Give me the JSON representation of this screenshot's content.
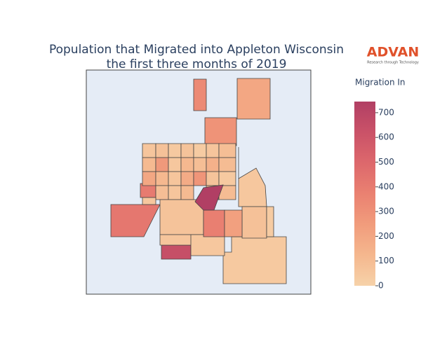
{
  "chart_data": {
    "type": "choropleth",
    "title": "Population that Migrated into Appleton Wisconsin",
    "subtitle": "the first three months of 2019",
    "logo": {
      "name": "ADVAN",
      "tagline": "Research through Technology"
    },
    "colorbar_title": "Migration In",
    "colorscale": [
      "#f6d2a9",
      "#f5b78e",
      "#f19c7c",
      "#ea8171",
      "#dd686c",
      "#ca5268",
      "#b13f64"
    ],
    "zlim": [
      0,
      745
    ],
    "zticks": [
      0,
      100,
      200,
      300,
      400,
      500,
      600,
      700
    ],
    "values": [
      330,
      200,
      290,
      40,
      640,
      420,
      400,
      60,
      80,
      40,
      70,
      30,
      60,
      90,
      110,
      260,
      50,
      120,
      90,
      150,
      100,
      200,
      120,
      60,
      180,
      280,
      70,
      40,
      90,
      60,
      110,
      130,
      100,
      50,
      70,
      60,
      50,
      50,
      80,
      30,
      380,
      230,
      745
    ]
  }
}
